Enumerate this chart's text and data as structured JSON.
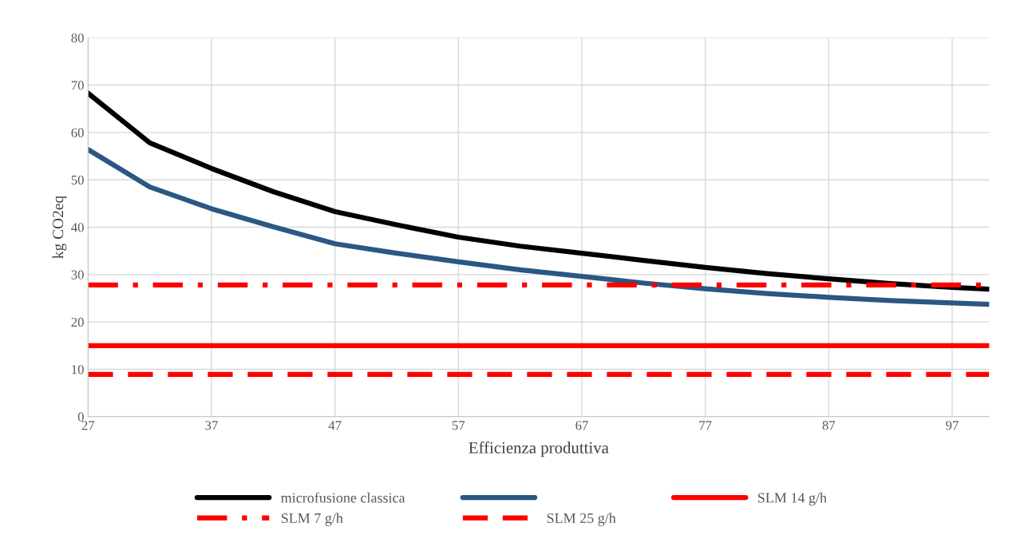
{
  "chart_data": {
    "type": "line",
    "xlabel": "Efficienza produttiva",
    "ylabel": "kg CO2eq",
    "xlim": [
      27,
      100
    ],
    "xticks": [
      27,
      37,
      47,
      57,
      67,
      77,
      87,
      97
    ],
    "ylim": [
      0,
      80
    ],
    "yticks": [
      0,
      10,
      20,
      30,
      40,
      50,
      60,
      70,
      80
    ],
    "grid": true,
    "legend": "bottom",
    "marker": "none",
    "series": [
      {
        "name": "microfusione classica",
        "color": "#000000",
        "x": [
          27,
          32,
          37,
          42,
          47,
          52,
          57,
          62,
          67,
          72,
          77,
          82,
          87,
          92,
          97,
          100
        ],
        "values": [
          68.3,
          57.8,
          52.4,
          47.5,
          43.3,
          40.5,
          37.9,
          36.0,
          34.5,
          33.0,
          31.5,
          30.2,
          29.1,
          28.1,
          27.3,
          26.9
        ]
      },
      {
        "color": "#2a5783",
        "x": [
          27,
          32,
          37,
          42,
          47,
          52,
          57,
          62,
          67,
          72,
          77,
          82,
          87,
          92,
          97,
          100
        ],
        "values": [
          56.4,
          48.5,
          43.9,
          40.1,
          36.5,
          34.5,
          32.7,
          31.0,
          29.6,
          28.2,
          27.0,
          26.0,
          25.2,
          24.5,
          24.0,
          23.7
        ]
      },
      {
        "name": "SLM 14 g/h",
        "color": "#ff0000",
        "line_style": "solid",
        "x": [
          27,
          100
        ],
        "values": [
          15.0,
          15.0
        ]
      },
      {
        "name": "SLM 7 g/h",
        "color": "#ff0000",
        "line_style": "dashdot",
        "x": [
          27,
          100
        ],
        "values": [
          27.8,
          27.8
        ]
      },
      {
        "name": "SLM 25 g/h",
        "color": "#ff0000",
        "line_style": "dashed",
        "x": [
          27,
          100
        ],
        "values": [
          8.9,
          8.9
        ]
      }
    ]
  }
}
